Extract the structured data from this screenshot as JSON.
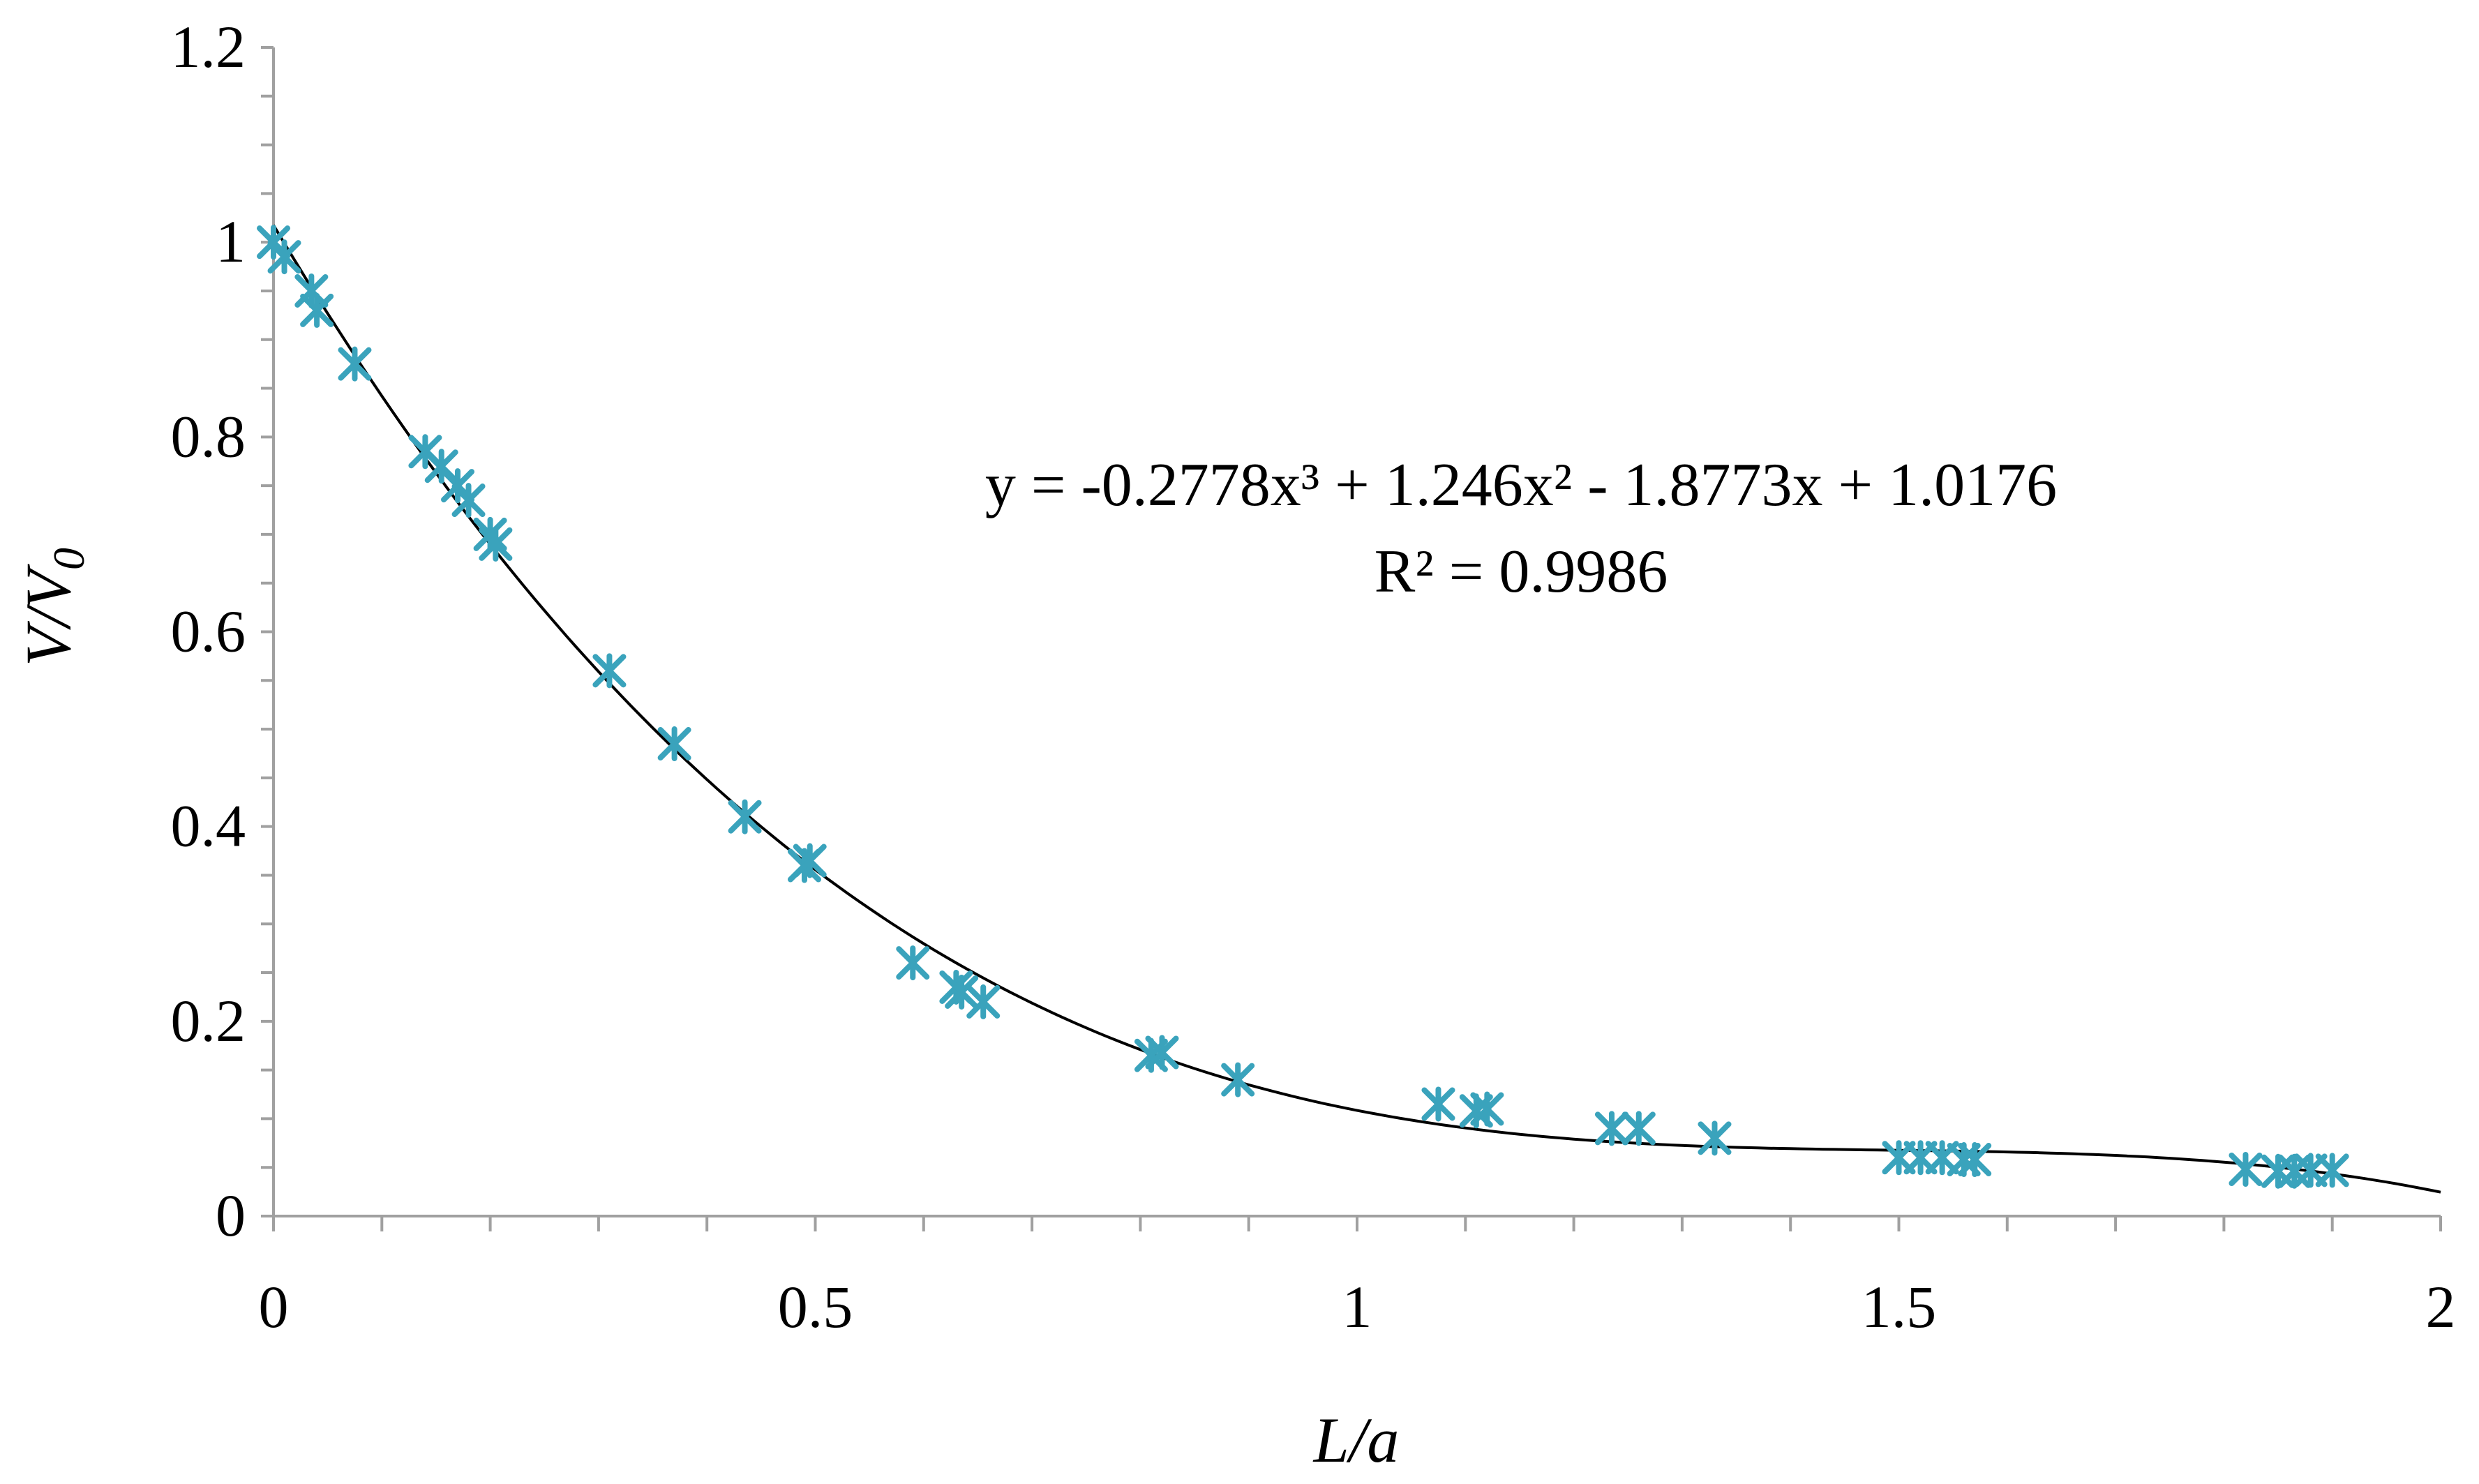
{
  "chart_data": {
    "type": "scatter",
    "title": "",
    "xlabel": "L/a",
    "ylabel": {
      "main": "V/V",
      "sub": "0"
    },
    "xlim": [
      0,
      2
    ],
    "ylim": [
      0,
      1.2
    ],
    "x_ticks": [
      0,
      0.5,
      1,
      1.5,
      2
    ],
    "x_tick_labels": [
      "0",
      "0.5",
      "1",
      "1.5",
      "2"
    ],
    "y_ticks": [
      0,
      0.2,
      0.4,
      0.6,
      0.8,
      1,
      1.2
    ],
    "y_tick_labels": [
      "0",
      "0.2",
      "0.4",
      "0.6",
      "0.8",
      "1",
      "1.2"
    ],
    "grid": false,
    "legend": "none",
    "marker_color": "#3aa3bc",
    "trendline_color": "#000000",
    "series": [
      {
        "marker": "asterisk",
        "points": [
          [
            0.0,
            1.0
          ],
          [
            0.01,
            0.985
          ],
          [
            0.035,
            0.95
          ],
          [
            0.04,
            0.93
          ],
          [
            0.075,
            0.875
          ],
          [
            0.14,
            0.785
          ],
          [
            0.155,
            0.77
          ],
          [
            0.17,
            0.75
          ],
          [
            0.18,
            0.735
          ],
          [
            0.2,
            0.7
          ],
          [
            0.205,
            0.69
          ],
          [
            0.31,
            0.56
          ],
          [
            0.37,
            0.485
          ],
          [
            0.435,
            0.41
          ],
          [
            0.49,
            0.36
          ],
          [
            0.495,
            0.365
          ],
          [
            0.59,
            0.26
          ],
          [
            0.63,
            0.235
          ],
          [
            0.635,
            0.23
          ],
          [
            0.655,
            0.22
          ],
          [
            0.81,
            0.165
          ],
          [
            0.82,
            0.168
          ],
          [
            0.89,
            0.14
          ],
          [
            1.075,
            0.115
          ],
          [
            1.11,
            0.108
          ],
          [
            1.12,
            0.11
          ],
          [
            1.235,
            0.09
          ],
          [
            1.26,
            0.09
          ],
          [
            1.33,
            0.08
          ],
          [
            1.5,
            0.06
          ],
          [
            1.52,
            0.06
          ],
          [
            1.54,
            0.06
          ],
          [
            1.56,
            0.058
          ],
          [
            1.57,
            0.058
          ],
          [
            1.82,
            0.048
          ],
          [
            1.85,
            0.046
          ],
          [
            1.865,
            0.046
          ],
          [
            1.88,
            0.047
          ],
          [
            1.9,
            0.047
          ]
        ]
      }
    ],
    "trendline": {
      "type": "polynomial",
      "coefficients": [
        -0.2778,
        1.246,
        -1.8773,
        1.0176
      ],
      "x_range": [
        0,
        2
      ]
    },
    "annotations": {
      "equation": "y = -0.2778x³ + 1.246x² - 1.8773x + 1.0176",
      "r_squared": "R² = 0.9986"
    }
  }
}
